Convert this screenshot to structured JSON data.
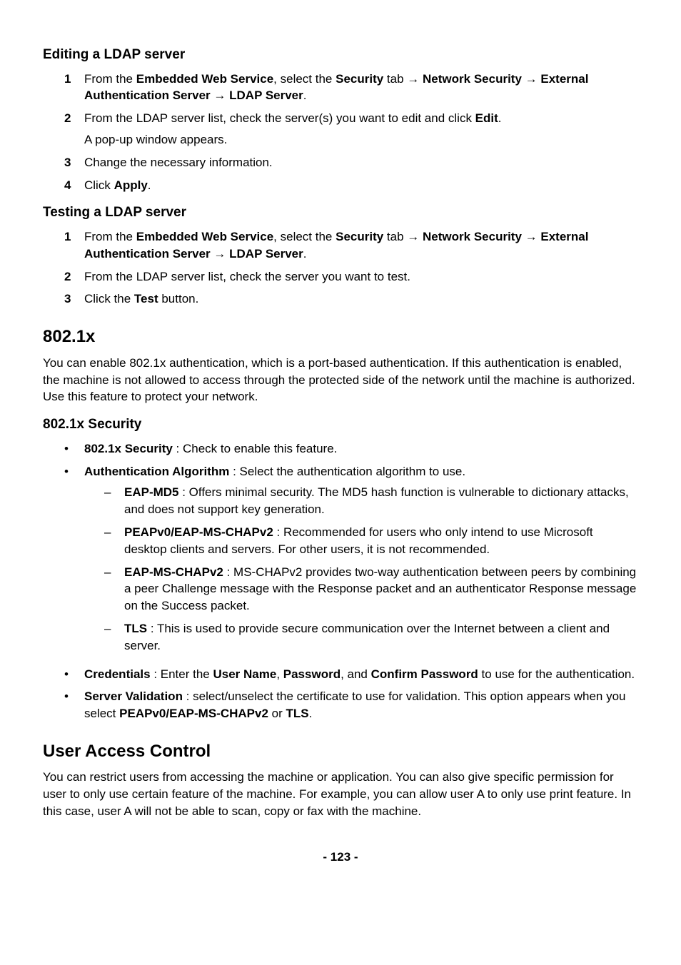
{
  "sections": {
    "editing": {
      "title": "Editing a LDAP server",
      "steps": [
        {
          "pre": "From the ",
          "b1": "Embedded Web Service",
          "mid1": ", select the ",
          "b2": "Security",
          "mid2": " tab ",
          "arrow1": "→",
          "sp1": " ",
          "b3": "Network Security",
          "sp2": " ",
          "arrow2": "→",
          "sp3": " ",
          "b4": "External Authentication Server",
          "sp4": " ",
          "arrow3": "→",
          "sp5": " ",
          "b5": "LDAP Server",
          "post": "."
        },
        {
          "pre": "From the LDAP server list, check the server(s) you want to edit and click ",
          "b1": "Edit",
          "post": ".",
          "sub": "A pop-up window appears."
        },
        {
          "pre": "Change the necessary information."
        },
        {
          "pre": "Click ",
          "b1": "Apply",
          "post": "."
        }
      ]
    },
    "testing": {
      "title": "Testing a LDAP server",
      "steps": [
        {
          "pre": "From the ",
          "b1": "Embedded Web Service",
          "mid1": ", select the ",
          "b2": "Security",
          "mid2": " tab ",
          "arrow1": "→",
          "sp1": " ",
          "b3": "Network Security",
          "sp2": " ",
          "arrow2": "→",
          "sp3": " ",
          "b4": "External Authentication Server",
          "sp4": " ",
          "arrow3": "→",
          "sp5": " ",
          "b5": "LDAP Server",
          "post": "."
        },
        {
          "pre": "From the LDAP server list, check the server you want to test."
        },
        {
          "pre": "Click the ",
          "b1": "Test",
          "post": " button."
        }
      ]
    },
    "s8021x": {
      "title": "802.1x",
      "body": "You can enable 802.1x authentication, which is a port-based authentication. If this authentication is enabled, the machine is not allowed to access through the protected side of the network until the machine is authorized. Use this feature to protect your network.",
      "subtitle": "802.1x Security",
      "bullets": {
        "b1_label": "802.1x Security",
        "b1_text": " : Check to enable this feature.",
        "b2_label": "Authentication Algorithm",
        "b2_text": " : Select the authentication algorithm to use.",
        "b2_dashes": {
          "d1_label": "EAP-MD5",
          "d1_text": " : Offers minimal security. The MD5 hash function is vulnerable to dictionary attacks, and does not support key generation.",
          "d2_label": "PEAPv0/EAP-MS-CHAPv2",
          "d2_text": " : Recommended for users who only intend to use Microsoft desktop clients and servers. For other users, it is not recommended.",
          "d3_label": "EAP-MS-CHAPv2",
          "d3_text": " : MS-CHAPv2 provides two-way authentication between peers by combining a peer Challenge message with the Response packet and an authenticator Response message on the Success packet.",
          "d4_label": "TLS",
          "d4_text": " : This is used to provide secure communication over the Internet between a client and server."
        },
        "b3_label": "Credentials",
        "b3_pre": " : Enter the ",
        "b3_b1": "User Name",
        "b3_mid1": ", ",
        "b3_b2": "Password",
        "b3_mid2": ", and ",
        "b3_b3": "Confirm Password",
        "b3_post": " to use for the authentication.",
        "b4_label": "Server Validation",
        "b4_pre": " : select/unselect the certificate to use for validation. This option appears when you select ",
        "b4_b1": "PEAPv0/EAP-MS-CHAPv2",
        "b4_mid": " or ",
        "b4_b2": "TLS",
        "b4_post": "."
      }
    },
    "uac": {
      "title": "User Access Control",
      "body": "You can restrict users from accessing the machine or application. You can also give specific permission for user to only use certain feature of the machine. For example, you can allow user A to only use print feature. In this case, user A will not be able to scan, copy or fax with the machine."
    }
  },
  "pageNum": "- 123 -"
}
